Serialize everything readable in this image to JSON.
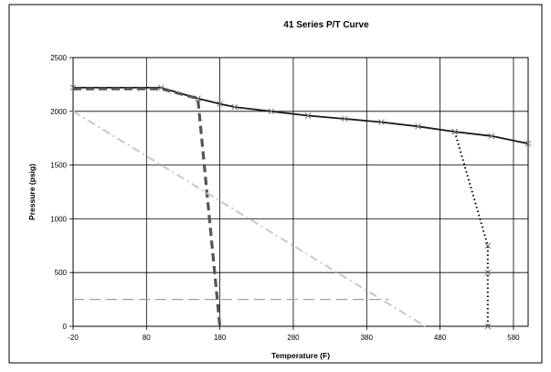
{
  "chart_data": {
    "type": "line",
    "title": "41 Series P/T Curve",
    "xlabel": "Temperature (F)",
    "ylabel": "Pressure (psig)",
    "xlim": [
      -20,
      600
    ],
    "ylim": [
      0,
      2500
    ],
    "x_ticks": [
      -20,
      80,
      180,
      280,
      380,
      480,
      580
    ],
    "y_ticks": [
      0,
      500,
      1000,
      1500,
      2000,
      2500
    ],
    "grid": true,
    "legend": "none",
    "series": [
      {
        "style": "solid-black-x-markers",
        "color": "#1a1a1a",
        "points": [
          [
            -20,
            2220
          ],
          [
            100,
            2220
          ],
          [
            150,
            2120
          ],
          [
            180,
            2070
          ],
          [
            200,
            2040
          ],
          [
            250,
            2000
          ],
          [
            300,
            1960
          ],
          [
            350,
            1930
          ],
          [
            400,
            1900
          ],
          [
            450,
            1860
          ],
          [
            500,
            1810
          ],
          [
            550,
            1770
          ],
          [
            600,
            1700
          ]
        ]
      },
      {
        "style": "dark-gray-dashed-thick",
        "color": "#555555",
        "points": [
          [
            -20,
            2210
          ],
          [
            100,
            2210
          ],
          [
            150,
            2120
          ],
          [
            180,
            0
          ]
        ]
      },
      {
        "style": "black-dotted-x-markers",
        "color": "#000000",
        "points": [
          [
            500,
            1810
          ],
          [
            545,
            750
          ],
          [
            545,
            500
          ],
          [
            545,
            0
          ]
        ]
      },
      {
        "style": "light-gray-dash-dot",
        "color": "#c8c8c8",
        "points": [
          [
            -20,
            2000
          ],
          [
            460,
            0
          ]
        ]
      },
      {
        "style": "gray-long-dashed",
        "color": "#a0a0a0",
        "points": [
          [
            -20,
            250
          ],
          [
            410,
            250
          ]
        ]
      }
    ]
  }
}
